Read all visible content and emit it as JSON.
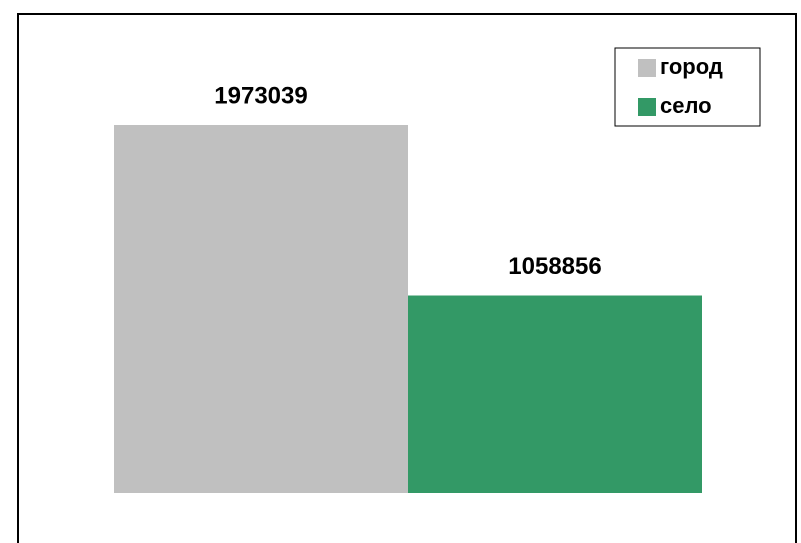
{
  "chart_data": {
    "type": "bar",
    "series": [
      {
        "name": "город",
        "color": "#c0c0c0",
        "values": [
          1973039
        ]
      },
      {
        "name": "село",
        "color": "#339966",
        "values": [
          1058856
        ]
      }
    ],
    "legend": "top-right"
  }
}
